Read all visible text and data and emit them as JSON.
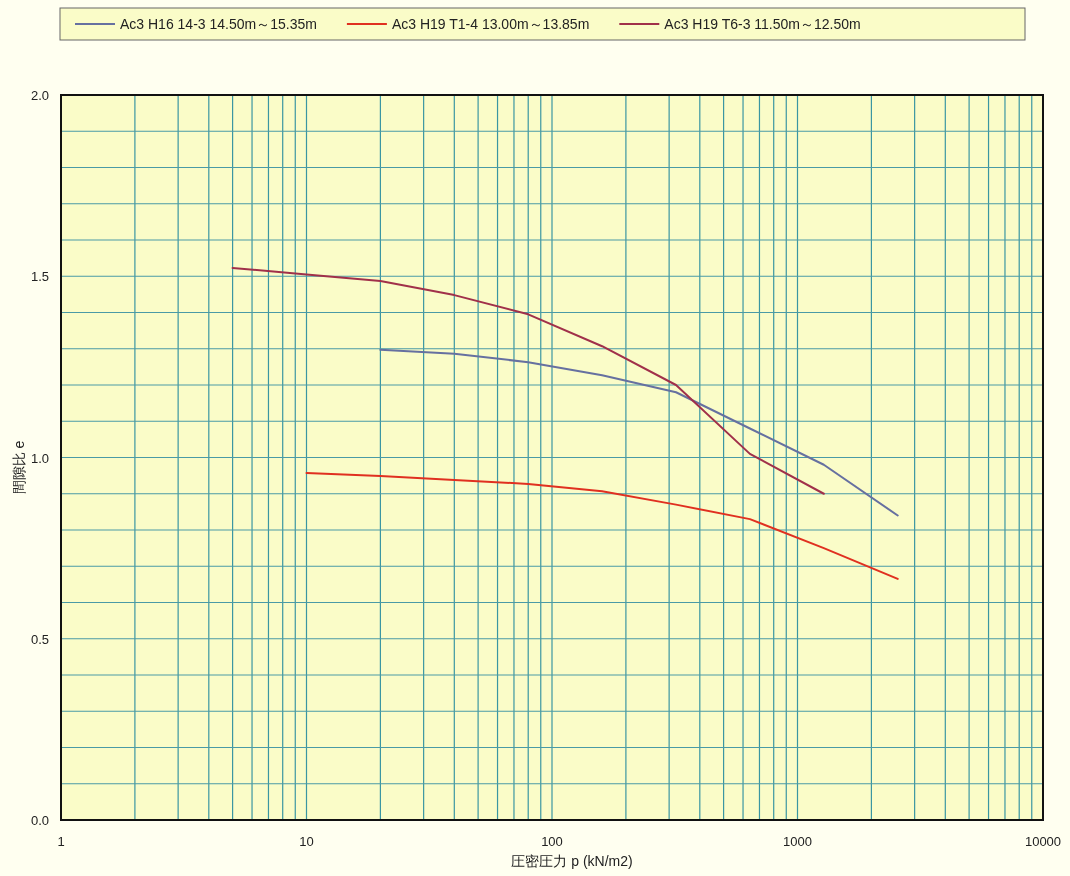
{
  "chart_data": {
    "type": "line",
    "xlabel": "圧密圧力 p (kN/m2)",
    "ylabel": "間隙比 e",
    "log": "x",
    "xlim": [
      1,
      10000
    ],
    "xticks": [
      1,
      {
        "value": 2,
        "label": null
      },
      {
        "value": 3,
        "label": null
      },
      {
        "value": 4,
        "label": null
      },
      {
        "value": 5,
        "label": null
      },
      {
        "value": 6,
        "label": null
      },
      {
        "value": 7,
        "label": null
      },
      {
        "value": 8,
        "label": null
      },
      {
        "value": 9,
        "label": null
      },
      10,
      {
        "value": 20,
        "label": null
      },
      {
        "value": 30,
        "label": null
      },
      {
        "value": 40,
        "label": null
      },
      {
        "value": 50,
        "label": null
      },
      {
        "value": 60,
        "label": null
      },
      {
        "value": 70,
        "label": null
      },
      {
        "value": 80,
        "label": null
      },
      {
        "value": 90,
        "label": null
      },
      100,
      {
        "value": 200,
        "label": null
      },
      {
        "value": 300,
        "label": null
      },
      {
        "value": 400,
        "label": null
      },
      {
        "value": 500,
        "label": null
      },
      {
        "value": 600,
        "label": null
      },
      {
        "value": 700,
        "label": null
      },
      {
        "value": 800,
        "label": null
      },
      {
        "value": 900,
        "label": null
      },
      1000,
      {
        "value": 2000,
        "label": null
      },
      {
        "value": 3000,
        "label": null
      },
      {
        "value": 4000,
        "label": null
      },
      {
        "value": 5000,
        "label": null
      },
      {
        "value": 6000,
        "label": null
      },
      {
        "value": 7000,
        "label": null
      },
      {
        "value": 8000,
        "label": null
      },
      {
        "value": 9000,
        "label": null
      },
      10000
    ],
    "ylim": [
      0,
      2
    ],
    "yticks": [
      {
        "value": 0,
        "label": "0.0"
      },
      {
        "value": 0.1,
        "label": null
      },
      {
        "value": 0.2,
        "label": null
      },
      {
        "value": 0.3,
        "label": null
      },
      {
        "value": 0.4,
        "label": null
      },
      {
        "value": 0.5,
        "label": "0.5"
      },
      {
        "value": 0.6,
        "label": null
      },
      {
        "value": 0.7,
        "label": null
      },
      {
        "value": 0.8,
        "label": null
      },
      {
        "value": 0.9,
        "label": null
      },
      {
        "value": 1,
        "label": "1.0"
      },
      {
        "value": 1.1,
        "label": null
      },
      {
        "value": 1.2,
        "label": null
      },
      {
        "value": 1.3,
        "label": null
      },
      {
        "value": 1.4,
        "label": null
      },
      {
        "value": 1.5,
        "label": "1.5"
      },
      {
        "value": 1.6,
        "label": null
      },
      {
        "value": 1.7,
        "label": null
      },
      {
        "value": 1.8,
        "label": null
      },
      {
        "value": 1.9,
        "label": null
      },
      {
        "value": 2,
        "label": "2.0"
      }
    ],
    "grid": true,
    "legend": "top",
    "marker": "none",
    "line_style": "solid",
    "series": [
      {
        "name": "Ac3 H16 14-3 14.50m～15.35m",
        "color": "#6670a0",
        "x": [
          20,
          40,
          80,
          160,
          320,
          640,
          1280,
          2560
        ],
        "values": [
          1.297,
          1.286,
          1.263,
          1.227,
          1.18,
          1.08,
          0.98,
          0.84
        ]
      },
      {
        "name": "Ac3 H19 T1-4 13.00m～13.85m",
        "color": "#e03020",
        "x": [
          10,
          20,
          40,
          80,
          160,
          320,
          640,
          1280,
          2560
        ],
        "values": [
          0.957,
          0.949,
          0.938,
          0.927,
          0.907,
          0.87,
          0.83,
          0.75,
          0.665
        ]
      },
      {
        "name": "Ac3 H19 T6-3 11.50m～12.50m",
        "color": "#a0304a",
        "x": [
          5,
          10,
          20,
          40,
          80,
          160,
          320,
          640,
          1280
        ],
        "values": [
          1.523,
          1.505,
          1.487,
          1.448,
          1.395,
          1.307,
          1.2,
          1.01,
          0.9
        ]
      }
    ]
  }
}
